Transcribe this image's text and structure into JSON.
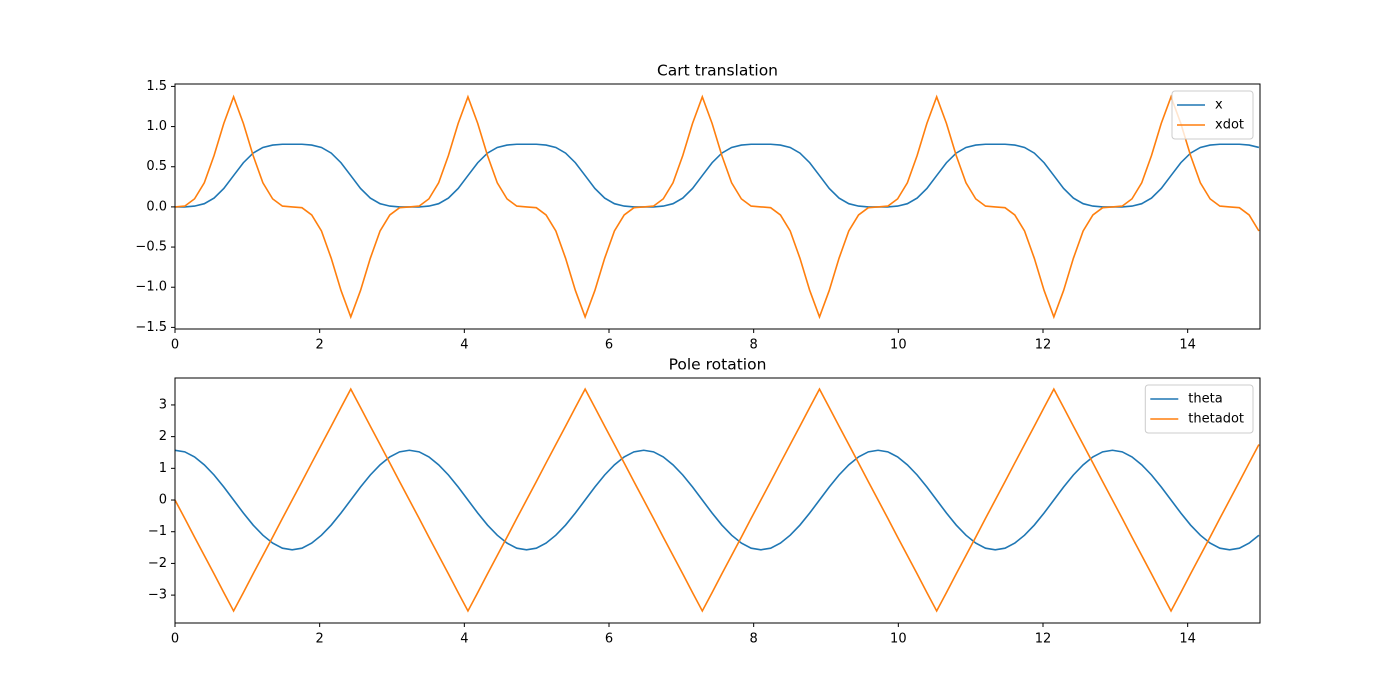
{
  "chart_data": [
    {
      "type": "line",
      "title": "Cart translation",
      "x": [
        0,
        0.135,
        0.27,
        0.405,
        0.54,
        0.675,
        0.81,
        0.945,
        1.08,
        1.215,
        1.35,
        1.485,
        1.62,
        1.755,
        1.89,
        2.025,
        2.16,
        2.295,
        2.43,
        2.565,
        2.7,
        2.835,
        2.97,
        3.105,
        3.24,
        3.375,
        3.51,
        3.645,
        3.78,
        3.915,
        4.05,
        4.185,
        4.32,
        4.455,
        4.59,
        4.725,
        4.86,
        4.995,
        5.13,
        5.265,
        5.4,
        5.535,
        5.67,
        5.805,
        5.94,
        6.075,
        6.21,
        6.345,
        6.48,
        6.615,
        6.75,
        6.885,
        7.02,
        7.155,
        7.29,
        7.425,
        7.56,
        7.695,
        7.83,
        7.965,
        8.1,
        8.235,
        8.37,
        8.505,
        8.64,
        8.775,
        8.91,
        9.045,
        9.18,
        9.315,
        9.45,
        9.585,
        9.72,
        9.855,
        9.99,
        10.125,
        10.26,
        10.395,
        10.53,
        10.665,
        10.8,
        10.935,
        11.07,
        11.205,
        11.34,
        11.475,
        11.61,
        11.745,
        11.88,
        12.015,
        12.15,
        12.285,
        12.42,
        12.555,
        12.69,
        12.825,
        12.96,
        13.095,
        13.23,
        13.365,
        13.5,
        13.635,
        13.77,
        13.905,
        14.04,
        14.175,
        14.31,
        14.445,
        14.58,
        14.715,
        14.85,
        14.985
      ],
      "series": [
        {
          "name": "x",
          "color": "#1f77b4",
          "values": [
            0,
            0,
            0.01,
            0.04,
            0.11,
            0.23,
            0.39,
            0.55,
            0.67,
            0.74,
            0.77,
            0.78,
            0.78,
            0.78,
            0.77,
            0.74,
            0.67,
            0.55,
            0.39,
            0.23,
            0.11,
            0.04,
            0.01,
            0,
            0,
            0,
            0.01,
            0.04,
            0.11,
            0.23,
            0.39,
            0.55,
            0.67,
            0.74,
            0.77,
            0.78,
            0.78,
            0.78,
            0.77,
            0.74,
            0.67,
            0.55,
            0.39,
            0.23,
            0.11,
            0.04,
            0.01,
            0,
            0,
            0,
            0.01,
            0.04,
            0.11,
            0.23,
            0.39,
            0.55,
            0.67,
            0.74,
            0.77,
            0.78,
            0.78,
            0.78,
            0.77,
            0.74,
            0.67,
            0.55,
            0.39,
            0.23,
            0.11,
            0.04,
            0.01,
            0,
            0,
            0,
            0.01,
            0.04,
            0.11,
            0.23,
            0.39,
            0.55,
            0.67,
            0.74,
            0.77,
            0.78,
            0.78,
            0.78,
            0.77,
            0.74,
            0.67,
            0.55,
            0.39,
            0.23,
            0.11,
            0.04,
            0.01,
            0,
            0,
            0,
            0.01,
            0.04,
            0.11,
            0.23,
            0.39,
            0.55,
            0.67,
            0.74,
            0.77,
            0.78,
            0.78,
            0.78,
            0.77,
            0.74
          ]
        },
        {
          "name": "xdot",
          "color": "#ff7f0e",
          "values": [
            0,
            0.01,
            0.1,
            0.3,
            0.64,
            1.04,
            1.37,
            1.04,
            0.64,
            0.3,
            0.1,
            0.01,
            0,
            -0.01,
            -0.1,
            -0.3,
            -0.64,
            -1.04,
            -1.37,
            -1.04,
            -0.64,
            -0.3,
            -0.1,
            -0.01,
            0,
            0.01,
            0.1,
            0.3,
            0.64,
            1.04,
            1.37,
            1.04,
            0.64,
            0.3,
            0.1,
            0.01,
            0,
            -0.01,
            -0.1,
            -0.3,
            -0.64,
            -1.04,
            -1.37,
            -1.04,
            -0.64,
            -0.3,
            -0.1,
            -0.01,
            0,
            0.01,
            0.1,
            0.3,
            0.64,
            1.04,
            1.37,
            1.04,
            0.64,
            0.3,
            0.1,
            0.01,
            0,
            -0.01,
            -0.1,
            -0.3,
            -0.64,
            -1.04,
            -1.37,
            -1.04,
            -0.64,
            -0.3,
            -0.1,
            -0.01,
            0,
            0.01,
            0.1,
            0.3,
            0.64,
            1.04,
            1.37,
            1.04,
            0.64,
            0.3,
            0.1,
            0.01,
            0,
            -0.01,
            -0.1,
            -0.3,
            -0.64,
            -1.04,
            -1.37,
            -1.04,
            -0.64,
            -0.3,
            -0.1,
            -0.01,
            0,
            0.01,
            0.1,
            0.3,
            0.64,
            1.04,
            1.37,
            1.04,
            0.64,
            0.3,
            0.1,
            0.01,
            0,
            -0.01,
            -0.1,
            -0.3
          ]
        }
      ],
      "xlim": [
        0,
        15
      ],
      "xticks": [
        0,
        2,
        4,
        6,
        8,
        10,
        12,
        14
      ],
      "ylim": [
        -1.52,
        1.53
      ],
      "yticks": [
        {
          "value": -1.5,
          "label": "−1.5"
        },
        {
          "value": -1,
          "label": "−1.0"
        },
        {
          "value": -0.5,
          "label": "−0.5"
        },
        {
          "value": 0,
          "label": "0.0"
        },
        0.5,
        {
          "value": 1,
          "label": "1.0"
        },
        1.5
      ],
      "legend": "upper right",
      "grid": false
    },
    {
      "type": "line",
      "title": "Pole rotation",
      "x": [
        0,
        0.135,
        0.27,
        0.405,
        0.54,
        0.675,
        0.81,
        0.945,
        1.08,
        1.215,
        1.35,
        1.485,
        1.62,
        1.755,
        1.89,
        2.025,
        2.16,
        2.295,
        2.43,
        2.565,
        2.7,
        2.835,
        2.97,
        3.105,
        3.24,
        3.375,
        3.51,
        3.645,
        3.78,
        3.915,
        4.05,
        4.185,
        4.32,
        4.455,
        4.59,
        4.725,
        4.86,
        4.995,
        5.13,
        5.265,
        5.4,
        5.535,
        5.67,
        5.805,
        5.94,
        6.075,
        6.21,
        6.345,
        6.48,
        6.615,
        6.75,
        6.885,
        7.02,
        7.155,
        7.29,
        7.425,
        7.56,
        7.695,
        7.83,
        7.965,
        8.1,
        8.235,
        8.37,
        8.505,
        8.64,
        8.775,
        8.91,
        9.045,
        9.18,
        9.315,
        9.45,
        9.585,
        9.72,
        9.855,
        9.99,
        10.125,
        10.26,
        10.395,
        10.53,
        10.665,
        10.8,
        10.935,
        11.07,
        11.205,
        11.34,
        11.475,
        11.61,
        11.745,
        11.88,
        12.015,
        12.15,
        12.285,
        12.42,
        12.555,
        12.69,
        12.825,
        12.96,
        13.095,
        13.23,
        13.365,
        13.5,
        13.635,
        13.77,
        13.905,
        14.04,
        14.175,
        14.31,
        14.445,
        14.58,
        14.715,
        14.85,
        14.985
      ],
      "series": [
        {
          "name": "theta",
          "color": "#1f77b4",
          "values": [
            1.57,
            1.52,
            1.36,
            1.11,
            0.79,
            0.41,
            0,
            -0.41,
            -0.79,
            -1.11,
            -1.36,
            -1.52,
            -1.57,
            -1.52,
            -1.36,
            -1.11,
            -0.79,
            -0.41,
            0,
            0.41,
            0.79,
            1.11,
            1.36,
            1.52,
            1.57,
            1.52,
            1.36,
            1.11,
            0.79,
            0.41,
            0,
            -0.41,
            -0.79,
            -1.11,
            -1.36,
            -1.52,
            -1.57,
            -1.52,
            -1.36,
            -1.11,
            -0.79,
            -0.41,
            0,
            0.41,
            0.79,
            1.11,
            1.36,
            1.52,
            1.57,
            1.52,
            1.36,
            1.11,
            0.79,
            0.41,
            0,
            -0.41,
            -0.79,
            -1.11,
            -1.36,
            -1.52,
            -1.57,
            -1.52,
            -1.36,
            -1.11,
            -0.79,
            -0.41,
            0,
            0.41,
            0.79,
            1.11,
            1.36,
            1.52,
            1.57,
            1.52,
            1.36,
            1.11,
            0.79,
            0.41,
            0,
            -0.41,
            -0.79,
            -1.11,
            -1.36,
            -1.52,
            -1.57,
            -1.52,
            -1.36,
            -1.11,
            -0.79,
            -0.41,
            0,
            0.41,
            0.79,
            1.11,
            1.36,
            1.52,
            1.57,
            1.52,
            1.36,
            1.11,
            0.79,
            0.41,
            0,
            -0.41,
            -0.79,
            -1.11,
            -1.36,
            -1.52,
            -1.57,
            -1.52,
            -1.36,
            -1.11
          ]
        },
        {
          "name": "thetadot",
          "color": "#ff7f0e",
          "values": [
            0,
            -0.58,
            -1.17,
            -1.75,
            -2.33,
            -2.92,
            -3.5,
            -2.92,
            -2.33,
            -1.75,
            -1.17,
            -0.58,
            0,
            0.58,
            1.17,
            1.75,
            2.33,
            2.92,
            3.5,
            2.92,
            2.33,
            1.75,
            1.17,
            0.58,
            0,
            -0.58,
            -1.17,
            -1.75,
            -2.33,
            -2.92,
            -3.5,
            -2.92,
            -2.33,
            -1.75,
            -1.17,
            -0.58,
            0,
            0.58,
            1.17,
            1.75,
            2.33,
            2.92,
            3.5,
            2.92,
            2.33,
            1.75,
            1.17,
            0.58,
            0,
            -0.58,
            -1.17,
            -1.75,
            -2.33,
            -2.92,
            -3.5,
            -2.92,
            -2.33,
            -1.75,
            -1.17,
            -0.58,
            0,
            0.58,
            1.17,
            1.75,
            2.33,
            2.92,
            3.5,
            2.92,
            2.33,
            1.75,
            1.17,
            0.58,
            0,
            -0.58,
            -1.17,
            -1.75,
            -2.33,
            -2.92,
            -3.5,
            -2.92,
            -2.33,
            -1.75,
            -1.17,
            -0.58,
            0,
            0.58,
            1.17,
            1.75,
            2.33,
            2.92,
            3.5,
            2.92,
            2.33,
            1.75,
            1.17,
            0.58,
            0,
            -0.58,
            -1.17,
            -1.75,
            -2.33,
            -2.92,
            -3.5,
            -2.92,
            -2.33,
            -1.75,
            -1.17,
            -0.58,
            0,
            0.58,
            1.17,
            1.75
          ]
        }
      ],
      "xlim": [
        0,
        15
      ],
      "xticks": [
        0,
        2,
        4,
        6,
        8,
        10,
        12,
        14
      ],
      "ylim": [
        -3.88,
        3.85
      ],
      "yticks": [
        {
          "value": -3,
          "label": "−3"
        },
        {
          "value": -2,
          "label": "−2"
        },
        {
          "value": -1,
          "label": "−1"
        },
        0,
        1,
        2,
        3
      ],
      "legend": "upper right",
      "grid": false
    }
  ]
}
